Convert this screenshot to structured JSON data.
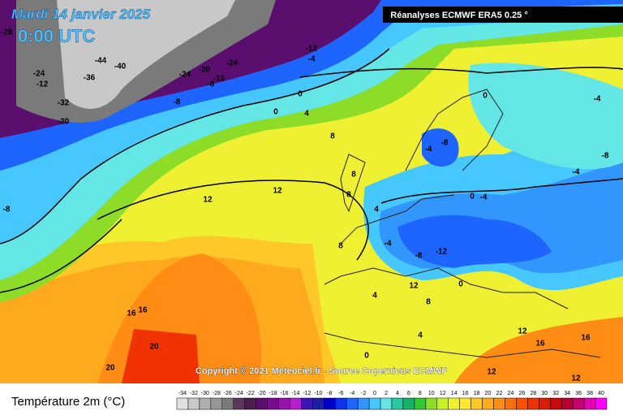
{
  "header": {
    "date": "Mardi 14 janvier 2025",
    "time": "0:00 UTC",
    "source": "Réanalyses ECMWF ERA5 0.25 °"
  },
  "copyright": "Copyright © 2021 Meteociel.fr - Source Copernicus ECMWF",
  "legend": {
    "title": "Température 2m (°C)",
    "ticks": [
      -34,
      -32,
      -30,
      -28,
      -26,
      -24,
      -22,
      -20,
      -18,
      -16,
      -14,
      -12,
      -10,
      -8,
      -6,
      -4,
      -2,
      0,
      2,
      4,
      6,
      8,
      10,
      12,
      14,
      16,
      18,
      20,
      22,
      24,
      26,
      28,
      30,
      32,
      34,
      36,
      38,
      40
    ],
    "colors": [
      "#e0e0e0",
      "#c8c8c8",
      "#b0b0b0",
      "#969696",
      "#7a7a7a",
      "#5a3a5a",
      "#4b1e4b",
      "#5a0f6e",
      "#780a8c",
      "#9614aa",
      "#b41ec8",
      "#3c14b4",
      "#1e1ea0",
      "#0000c8",
      "#0a32e6",
      "#1e64ff",
      "#3296ff",
      "#46c8ff",
      "#64e6e6",
      "#28c8a0",
      "#14b464",
      "#32c832",
      "#8cdc28",
      "#c8f028",
      "#f0f032",
      "#ffe632",
      "#ffc828",
      "#ffaa1e",
      "#ff8c14",
      "#ff6e0a",
      "#ff5000",
      "#f03200",
      "#dc1e00",
      "#c80a0a",
      "#b40032",
      "#c8006e",
      "#e600b4",
      "#ff00ff"
    ]
  },
  "map": {
    "labels": [
      -28,
      -12,
      -4,
      -44,
      -40,
      -24,
      -20,
      -24,
      -16,
      -8,
      -36,
      -24,
      -12,
      -32,
      -20,
      -8,
      0,
      4,
      0,
      0,
      -4,
      8,
      -4,
      -8,
      -8,
      -4,
      12,
      12,
      8,
      4,
      0,
      -4,
      -8,
      8,
      -12,
      -8,
      -4,
      12,
      0,
      16,
      16,
      20,
      20,
      8,
      4,
      12,
      16,
      16,
      12,
      12,
      8,
      4,
      0
    ]
  }
}
